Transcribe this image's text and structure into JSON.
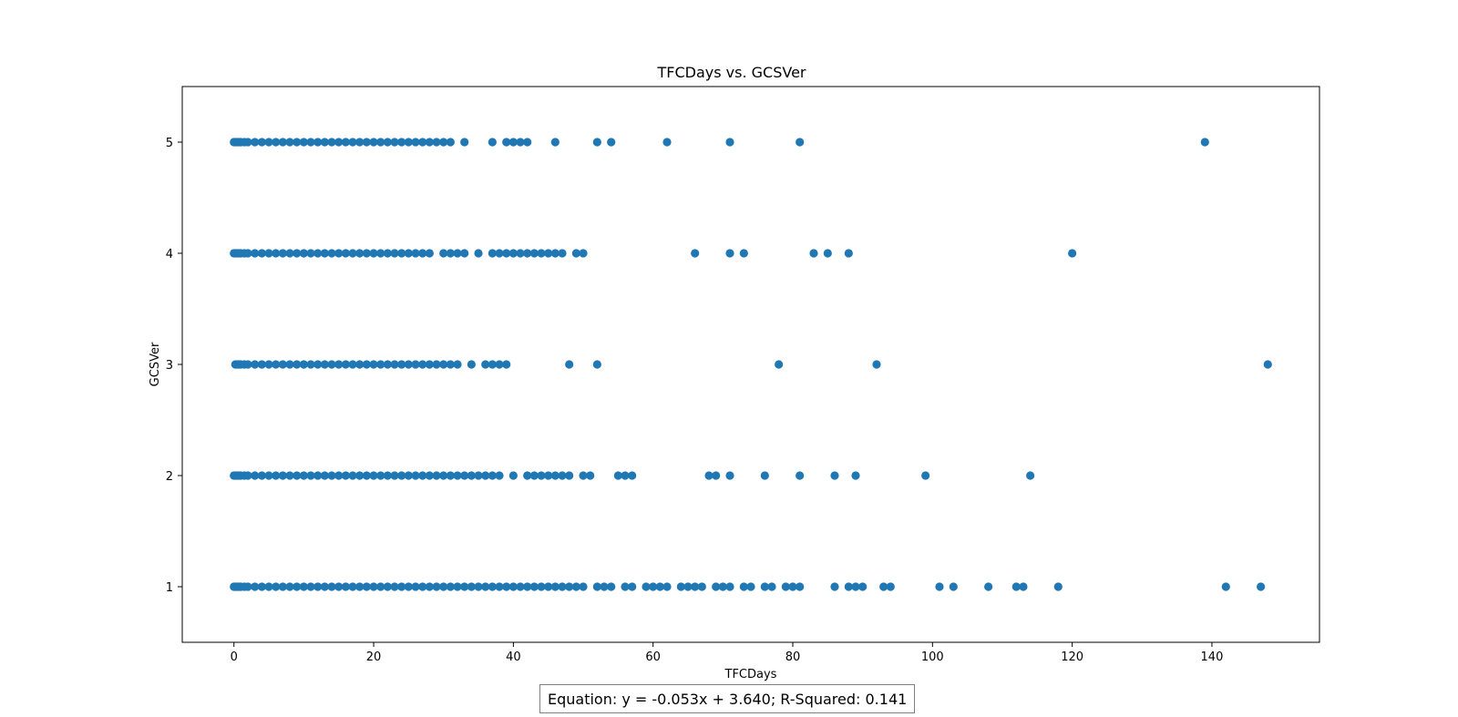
{
  "chart_data": {
    "type": "scatter",
    "title": "TFCDays vs. GCSVer",
    "xlabel": "TFCDays",
    "ylabel": "GCSVer",
    "xlim": [
      -7.4,
      155.4
    ],
    "ylim": [
      0.5,
      5.5
    ],
    "xticks": [
      0,
      20,
      40,
      60,
      80,
      100,
      120,
      140
    ],
    "yticks": [
      1,
      2,
      3,
      4,
      5
    ],
    "grid": false,
    "point_color": "#1f77b4",
    "annotation": "Equation: y = -0.053x + 3.640; R-Squared: 0.141",
    "series": [
      {
        "points_by_y": {
          "5": [
            0,
            0.2,
            0.4,
            0.6,
            0.8,
            1,
            1.5,
            2,
            3,
            4,
            5,
            6,
            7,
            8,
            9,
            10,
            11,
            12,
            13,
            14,
            15,
            16,
            17,
            18,
            19,
            20,
            21,
            22,
            23,
            24,
            25,
            26,
            27,
            28,
            29,
            30,
            31,
            33,
            37,
            39,
            40,
            41,
            42,
            46,
            52,
            54,
            62,
            71,
            81,
            139
          ],
          "4": [
            0,
            0.2,
            0.4,
            0.6,
            0.8,
            1,
            1.5,
            2,
            3,
            4,
            5,
            6,
            7,
            8,
            9,
            10,
            11,
            12,
            13,
            14,
            15,
            16,
            17,
            18,
            19,
            20,
            21,
            22,
            23,
            24,
            25,
            26,
            27,
            28,
            30,
            31,
            32,
            33,
            35,
            37,
            38,
            39,
            40,
            41,
            42,
            43,
            44,
            45,
            46,
            47,
            49,
            50,
            66,
            71,
            73,
            83,
            85,
            88,
            120
          ],
          "3": [
            0.2,
            0.4,
            0.6,
            0.8,
            1,
            1.5,
            2,
            3,
            4,
            5,
            6,
            7,
            8,
            9,
            10,
            11,
            12,
            13,
            14,
            15,
            16,
            17,
            18,
            19,
            20,
            21,
            22,
            23,
            24,
            25,
            26,
            27,
            28,
            29,
            30,
            31,
            32,
            34,
            36,
            37,
            38,
            39,
            48,
            52,
            78,
            92,
            148
          ],
          "2": [
            0,
            0.2,
            0.4,
            0.6,
            0.8,
            1,
            1.5,
            2,
            3,
            4,
            5,
            6,
            7,
            8,
            9,
            10,
            11,
            12,
            13,
            14,
            15,
            16,
            17,
            18,
            19,
            20,
            21,
            22,
            23,
            24,
            25,
            26,
            27,
            28,
            29,
            30,
            31,
            32,
            33,
            34,
            35,
            36,
            37,
            38,
            40,
            42,
            43,
            44,
            45,
            46,
            47,
            48,
            50,
            51,
            55,
            56,
            57,
            68,
            69,
            71,
            76,
            81,
            86,
            89,
            99,
            114
          ],
          "1": [
            0,
            0.2,
            0.4,
            0.6,
            0.8,
            1,
            1.5,
            2,
            3,
            4,
            5,
            6,
            7,
            8,
            9,
            10,
            11,
            12,
            13,
            14,
            15,
            16,
            17,
            18,
            19,
            20,
            21,
            22,
            23,
            24,
            25,
            26,
            27,
            28,
            29,
            30,
            31,
            32,
            33,
            34,
            35,
            36,
            37,
            38,
            39,
            40,
            41,
            42,
            43,
            44,
            45,
            46,
            47,
            48,
            49,
            50,
            52,
            53,
            54,
            56,
            57,
            59,
            60,
            61,
            62,
            64,
            65,
            66,
            67,
            69,
            70,
            71,
            73,
            74,
            76,
            77,
            79,
            80,
            81,
            86,
            88,
            89,
            90,
            93,
            94,
            101,
            103,
            108,
            112,
            113,
            118,
            142,
            147
          ]
        }
      }
    ]
  }
}
